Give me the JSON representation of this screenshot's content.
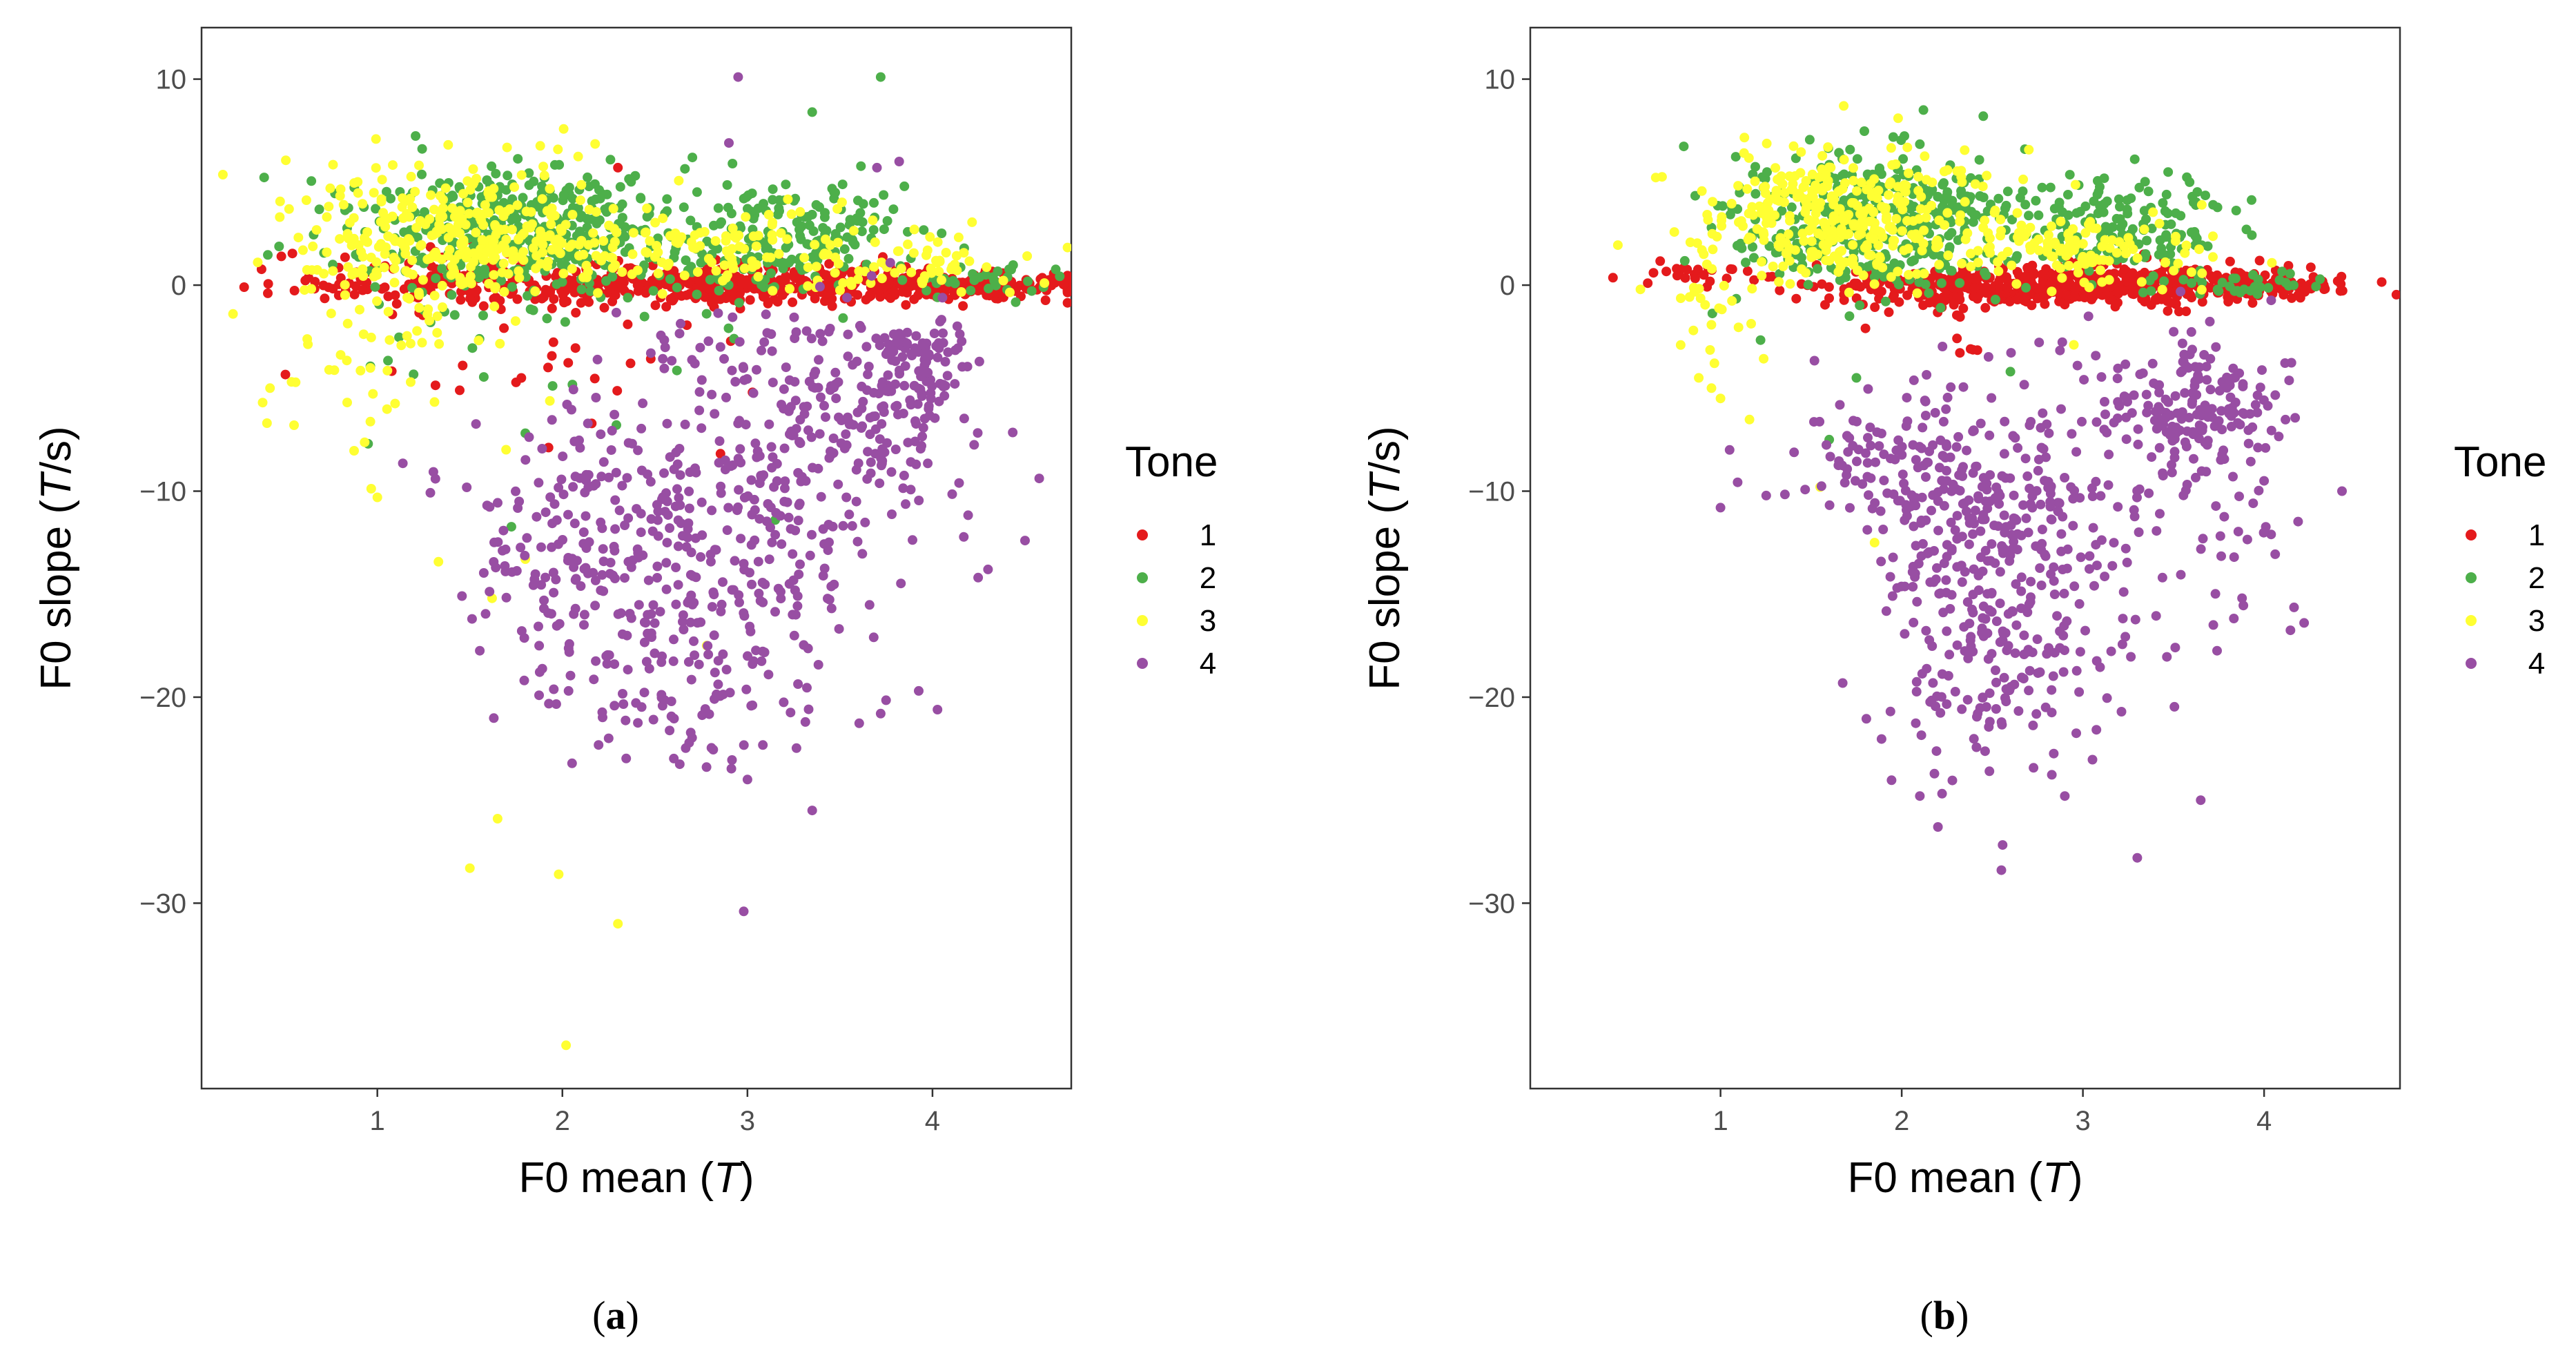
{
  "chart_data": [
    {
      "type": "scatter",
      "panel_label": "a",
      "xlim": [
        0.05,
        4.75
      ],
      "ylim": [
        -39,
        12.5
      ],
      "x_ticks": [
        "1",
        "2",
        "3",
        "4"
      ],
      "x_tick_values": [
        1,
        2,
        3,
        4
      ],
      "y_ticks": [
        "10",
        "0",
        "−10",
        "−20",
        "−30"
      ],
      "y_tick_values": [
        10,
        0,
        -10,
        -20,
        -30
      ],
      "xlabel": {
        "main": "F0 mean (",
        "italic": "T",
        "end": ")"
      },
      "ylabel": {
        "main": "F0 slope (",
        "italic": "T",
        "end": "/s)"
      },
      "legend": {
        "title": "Tone",
        "position": "right"
      },
      "grid": false,
      "series": [
        {
          "name": "1",
          "color": "#e41a1c",
          "clusters": [
            {
              "cx": 3.0,
              "cy": 0.0,
              "sx": 0.85,
              "sy": 0.45,
              "n": 520
            },
            {
              "cx": 4.2,
              "cy": 0.0,
              "sx": 0.25,
              "sy": 0.3,
              "n": 120
            },
            {
              "cx": 1.5,
              "cy": 0.3,
              "sx": 0.45,
              "sy": 0.8,
              "n": 110
            },
            {
              "cx": 2.1,
              "cy": -3.2,
              "sx": 0.5,
              "sy": 2.2,
              "n": 35
            },
            {
              "cx": 0.7,
              "cy": 0.0,
              "sx": 0.2,
              "sy": 0.3,
              "n": 10
            }
          ],
          "points": [
            [
              0.28,
              -0.1
            ],
            [
              4.58,
              -0.1
            ],
            [
              2.3,
              5.7
            ]
          ]
        },
        {
          "name": "2",
          "color": "#4daf4a",
          "clusters": [
            {
              "cx": 1.7,
              "cy": 3.0,
              "sx": 0.45,
              "sy": 1.6,
              "n": 340
            },
            {
              "cx": 3.3,
              "cy": 2.6,
              "sx": 0.3,
              "sy": 1.4,
              "n": 140
            },
            {
              "cx": 2.5,
              "cy": 1.6,
              "sx": 0.7,
              "sy": 1.3,
              "n": 120
            },
            {
              "cx": 4.3,
              "cy": 0.2,
              "sx": 0.25,
              "sy": 0.4,
              "n": 30
            },
            {
              "cx": 1.5,
              "cy": -3.0,
              "sx": 0.4,
              "sy": 2.5,
              "n": 25
            }
          ],
          "points": [
            [
              3.72,
              10.1
            ],
            [
              3.35,
              8.4
            ],
            [
              0.95,
              -7.7
            ],
            [
              3.15,
              -11.4
            ],
            [
              4.6,
              -0.1
            ]
          ]
        },
        {
          "name": "3",
          "color": "#ffff33",
          "clusters": [
            {
              "cx": 1.4,
              "cy": 2.6,
              "sx": 0.45,
              "sy": 1.7,
              "n": 300
            },
            {
              "cx": 2.7,
              "cy": 1.6,
              "sx": 0.7,
              "sy": 1.0,
              "n": 160
            },
            {
              "cx": 1.1,
              "cy": -3.5,
              "sx": 0.35,
              "sy": 3.0,
              "n": 55
            },
            {
              "cx": 3.8,
              "cy": 0.8,
              "sx": 0.3,
              "sy": 0.6,
              "n": 40
            }
          ],
          "points": [
            [
              2.02,
              -36.9
            ],
            [
              2.3,
              -31.0
            ],
            [
              1.5,
              -28.3
            ],
            [
              1.98,
              -28.6
            ],
            [
              1.65,
              -25.9
            ],
            [
              0.22,
              -1.4
            ],
            [
              0.42,
              -5.0
            ],
            [
              0.38,
              -5.7
            ],
            [
              0.55,
              -6.8
            ],
            [
              1.0,
              -10.3
            ],
            [
              1.62,
              -15.2
            ],
            [
              1.8,
              -13.3
            ],
            [
              2.78,
              -17.5
            ]
          ]
        },
        {
          "name": "4",
          "color": "#984ea3",
          "clusters": [
            {
              "cx": 2.55,
              "cy": -12.5,
              "sx": 0.55,
              "sy": 3.6,
              "n": 420
            },
            {
              "cx": 3.6,
              "cy": -6.3,
              "sx": 0.35,
              "sy": 2.4,
              "n": 190
            },
            {
              "cx": 3.95,
              "cy": -3.8,
              "sx": 0.12,
              "sy": 0.9,
              "n": 70
            },
            {
              "cx": 2.6,
              "cy": -19.5,
              "sx": 0.45,
              "sy": 2.0,
              "n": 80
            },
            {
              "cx": 2.95,
              "cy": -4.0,
              "sx": 0.3,
              "sy": 1.5,
              "n": 30
            }
          ],
          "points": [
            [
              2.95,
              10.1
            ],
            [
              2.98,
              -30.4
            ],
            [
              3.35,
              -25.5
            ],
            [
              3.72,
              -20.8
            ],
            [
              2.25,
              -22.0
            ],
            [
              4.3,
              -13.8
            ],
            [
              4.5,
              -12.4
            ],
            [
              3.0,
              -24.0
            ],
            [
              3.7,
              5.7
            ],
            [
              3.82,
              6.0
            ],
            [
              2.9,
              6.9
            ]
          ]
        }
      ]
    },
    {
      "type": "scatter",
      "panel_label": "b",
      "xlim": [
        -0.05,
        4.75
      ],
      "ylim": [
        -39,
        12.5
      ],
      "x_ticks": [
        "1",
        "2",
        "3",
        "4"
      ],
      "x_tick_values": [
        1,
        2,
        3,
        4
      ],
      "y_ticks": [
        "10",
        "0",
        "−10",
        "−20",
        "−30"
      ],
      "y_tick_values": [
        10,
        0,
        -10,
        -20,
        -30
      ],
      "xlabel": {
        "main": "F0 mean (",
        "italic": "T",
        "end": ")"
      },
      "ylabel": {
        "main": "F0 slope (",
        "italic": "T",
        "end": "/s)"
      },
      "legend": {
        "title": "Tone",
        "position": "right"
      },
      "grid": false,
      "series": [
        {
          "name": "1",
          "color": "#e41a1c",
          "clusters": [
            {
              "cx": 3.1,
              "cy": 0.0,
              "sx": 0.55,
              "sy": 0.45,
              "n": 480
            },
            {
              "cx": 2.1,
              "cy": -0.2,
              "sx": 0.35,
              "sy": 0.5,
              "n": 90
            },
            {
              "cx": 4.0,
              "cy": 0.0,
              "sx": 0.2,
              "sy": 0.3,
              "n": 60
            },
            {
              "cx": 0.9,
              "cy": 0.6,
              "sx": 0.2,
              "sy": 0.3,
              "n": 25
            },
            {
              "cx": 2.3,
              "cy": -1.8,
              "sx": 0.3,
              "sy": 0.8,
              "n": 10
            }
          ],
          "points": [
            [
              0.63,
              0.6
            ],
            [
              4.3,
              0.1
            ],
            [
              1.8,
              -2.1
            ],
            [
              2.38,
              -3.1
            ]
          ]
        },
        {
          "name": "2",
          "color": "#4daf4a",
          "clusters": [
            {
              "cx": 1.8,
              "cy": 3.2,
              "sx": 0.4,
              "sy": 1.7,
              "n": 330
            },
            {
              "cx": 3.3,
              "cy": 2.8,
              "sx": 0.25,
              "sy": 1.3,
              "n": 130
            },
            {
              "cx": 2.4,
              "cy": 2.5,
              "sx": 0.4,
              "sy": 1.6,
              "n": 90
            },
            {
              "cx": 3.9,
              "cy": 0.1,
              "sx": 0.2,
              "sy": 0.3,
              "n": 35
            }
          ],
          "points": [
            [
              2.12,
              8.5
            ],
            [
              2.45,
              8.2
            ],
            [
              2.68,
              6.6
            ],
            [
              1.6,
              -7.5
            ],
            [
              1.75,
              -4.5
            ],
            [
              2.6,
              -4.2
            ],
            [
              3.6,
              0.1
            ]
          ]
        },
        {
          "name": "3",
          "color": "#ffff33",
          "clusters": [
            {
              "cx": 1.6,
              "cy": 3.5,
              "sx": 0.4,
              "sy": 1.7,
              "n": 330
            },
            {
              "cx": 2.9,
              "cy": 1.6,
              "sx": 0.4,
              "sy": 0.9,
              "n": 130
            },
            {
              "cx": 1.0,
              "cy": -1.5,
              "sx": 0.15,
              "sy": 1.5,
              "n": 20
            }
          ],
          "points": [
            [
              1.68,
              8.7
            ],
            [
              1.98,
              8.1
            ],
            [
              0.85,
              -2.2
            ],
            [
              0.88,
              -4.5
            ],
            [
              0.95,
              -5.0
            ],
            [
              1.0,
              -5.5
            ],
            [
              1.55,
              -9.8
            ],
            [
              1.85,
              -12.5
            ],
            [
              2.95,
              -2.9
            ]
          ]
        },
        {
          "name": "4",
          "color": "#984ea3",
          "clusters": [
            {
              "cx": 2.5,
              "cy": -11.5,
              "sx": 0.4,
              "sy": 3.8,
              "n": 360
            },
            {
              "cx": 3.6,
              "cy": -6.0,
              "sx": 0.25,
              "sy": 1.8,
              "n": 180
            },
            {
              "cx": 2.6,
              "cy": -19.5,
              "sx": 0.35,
              "sy": 2.4,
              "n": 110
            },
            {
              "cx": 1.9,
              "cy": -8.5,
              "sx": 0.3,
              "sy": 1.5,
              "n": 60
            },
            {
              "cx": 3.7,
              "cy": -12.0,
              "sx": 0.3,
              "sy": 2.5,
              "n": 40
            }
          ],
          "points": [
            [
              2.55,
              -28.4
            ],
            [
              3.3,
              -27.8
            ],
            [
              2.2,
              -26.3
            ],
            [
              3.65,
              -25.0
            ],
            [
              2.9,
              -24.8
            ],
            [
              1.05,
              -8.0
            ],
            [
              1.0,
              -10.8
            ],
            [
              4.43,
              -10.0
            ],
            [
              2.1,
              -24.8
            ],
            [
              4.0,
              -9.5
            ]
          ]
        }
      ]
    }
  ]
}
